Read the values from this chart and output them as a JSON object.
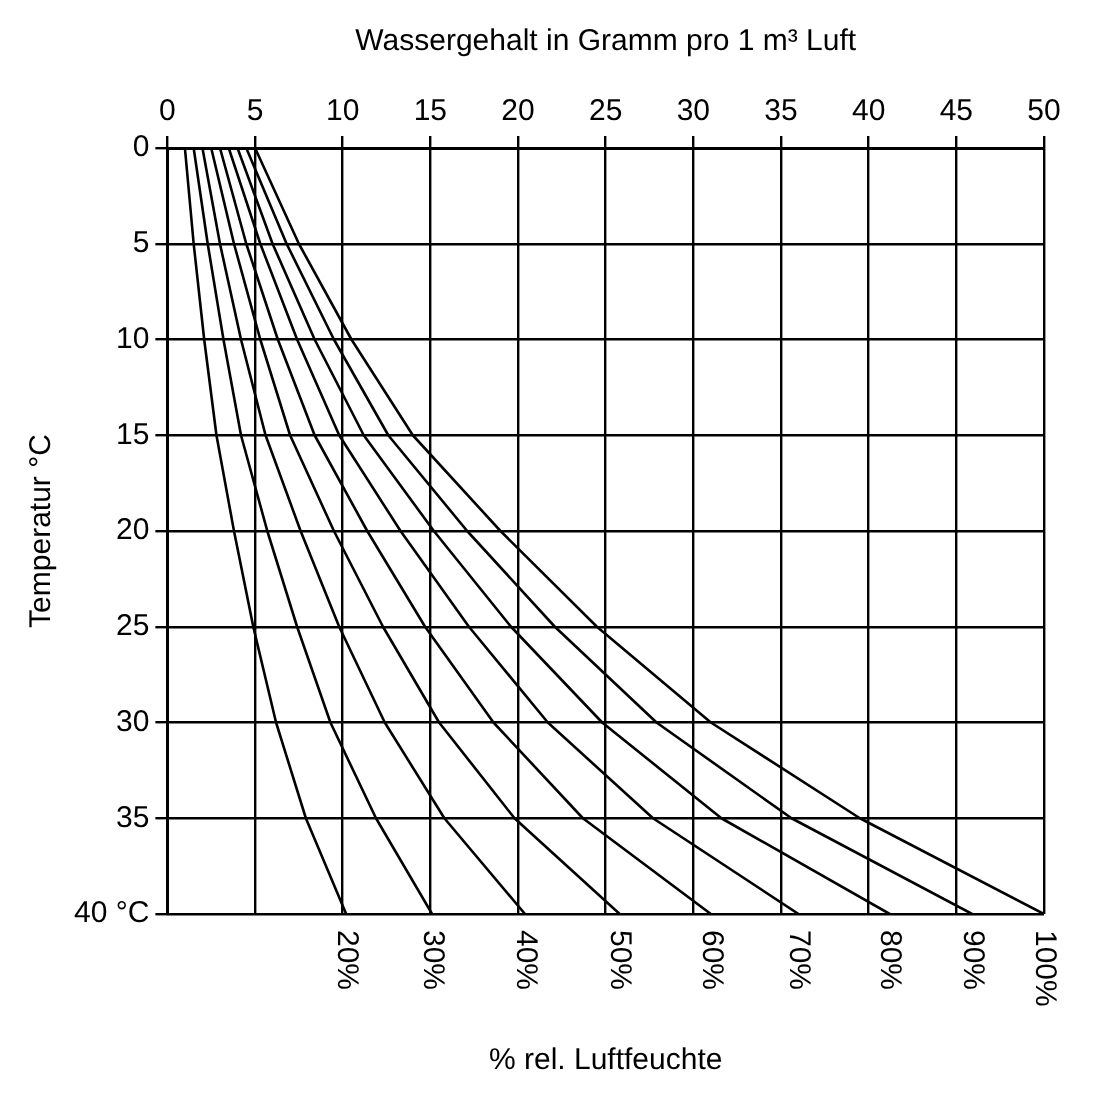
{
  "chart_data": {
    "type": "line",
    "xlabel": "Wassergehalt in Gramm pro 1 m³ Luft",
    "ylabel": "Temperatur °C",
    "annotations": [
      "% rel. Luftfeuchte"
    ],
    "xlim": [
      0,
      50
    ],
    "xticks": [
      0,
      5,
      10,
      15,
      20,
      25,
      30,
      35,
      40,
      45,
      50
    ],
    "ylim": [
      40,
      0
    ],
    "yticks": [
      0,
      5,
      10,
      15,
      20,
      25,
      30,
      35,
      {
        "value": 40,
        "label": "40 °C"
      }
    ],
    "grid": true,
    "legend": false,
    "marker": "none",
    "line_style": "solid",
    "series": [
      {
        "name": "20%",
        "color": "#000000",
        "x": [
          1,
          1.5,
          2.1,
          2.8,
          3.8,
          4.9,
          6.2,
          7.9,
          10.2
        ],
        "values": [
          0,
          5,
          10,
          15,
          20,
          25,
          30,
          35,
          40
        ]
      },
      {
        "name": "30%",
        "color": "#000000",
        "x": [
          1.5,
          2.3,
          3.2,
          4.2,
          5.7,
          7.4,
          9.3,
          11.9,
          15.1
        ],
        "values": [
          0,
          5,
          10,
          15,
          20,
          25,
          30,
          35,
          40
        ]
      },
      {
        "name": "40%",
        "color": "#000000",
        "x": [
          2,
          3,
          4.2,
          5.6,
          7.6,
          9.8,
          12.4,
          15.8,
          20.4
        ],
        "values": [
          0,
          5,
          10,
          15,
          20,
          25,
          30,
          35,
          40
        ]
      },
      {
        "name": "50%",
        "color": "#000000",
        "x": [
          2.5,
          3.8,
          5.3,
          7,
          9.5,
          12.3,
          15.5,
          19.8,
          25.8
        ],
        "values": [
          0,
          5,
          10,
          15,
          20,
          25,
          30,
          35,
          40
        ]
      },
      {
        "name": "60%",
        "color": "#000000",
        "x": [
          3,
          4.5,
          6.3,
          8.4,
          11.4,
          14.7,
          18.6,
          23.7,
          31
        ],
        "values": [
          0,
          5,
          10,
          15,
          20,
          25,
          30,
          35,
          40
        ]
      },
      {
        "name": "70%",
        "color": "#000000",
        "x": [
          3.5,
          5.3,
          7.4,
          9.8,
          13.3,
          17.2,
          21.7,
          27.7,
          36
        ],
        "values": [
          0,
          5,
          10,
          15,
          20,
          25,
          30,
          35,
          40
        ]
      },
      {
        "name": "80%",
        "color": "#000000",
        "x": [
          4,
          6,
          8.4,
          11.2,
          15.2,
          19.6,
          24.8,
          31.6,
          41.2
        ],
        "values": [
          0,
          5,
          10,
          15,
          20,
          25,
          30,
          35,
          40
        ]
      },
      {
        "name": "90%",
        "color": "#000000",
        "x": [
          4.5,
          6.8,
          9.5,
          12.6,
          17.1,
          22.1,
          27.9,
          35.6,
          45.9
        ],
        "values": [
          0,
          5,
          10,
          15,
          20,
          25,
          30,
          35,
          40
        ]
      },
      {
        "name": "100%",
        "color": "#000000",
        "x": [
          5,
          7.5,
          10.5,
          14,
          19,
          24.5,
          31,
          39.5,
          50
        ],
        "values": [
          0,
          5,
          10,
          15,
          20,
          25,
          30,
          35,
          40
        ]
      }
    ]
  }
}
